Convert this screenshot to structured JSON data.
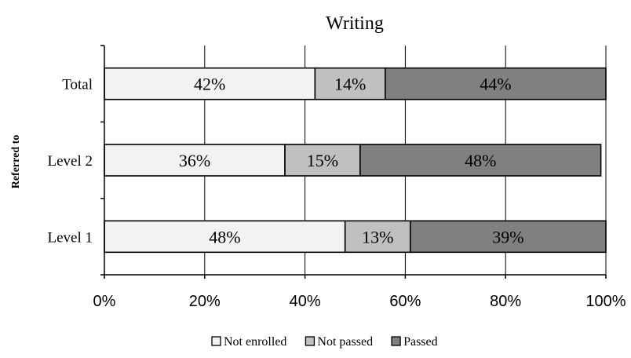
{
  "chart_data": {
    "type": "bar",
    "orientation": "horizontal",
    "stacked": true,
    "title": "Writing",
    "xlabel": "",
    "ylabel": "Referred to",
    "categories": [
      "Total",
      "Level 2",
      "Level 1"
    ],
    "series": [
      {
        "name": "Not enrolled",
        "values": [
          42,
          36,
          48
        ],
        "labels": [
          "42%",
          "36%",
          "48%"
        ],
        "color": "#f2f2f2"
      },
      {
        "name": "Not passed",
        "values": [
          14,
          15,
          13
        ],
        "labels": [
          "14%",
          "15%",
          "13%"
        ],
        "color": "#c0c0c0"
      },
      {
        "name": "Passed",
        "values": [
          44,
          48,
          39
        ],
        "labels": [
          "44%",
          "48%",
          "39%"
        ],
        "color": "#808080"
      }
    ],
    "xlim": [
      0,
      100
    ],
    "xticks": [
      0,
      20,
      40,
      60,
      80,
      100
    ],
    "xtick_labels": [
      "0%",
      "20%",
      "40%",
      "60%",
      "80%",
      "100%"
    ],
    "grid": true,
    "legend": "bottom"
  }
}
